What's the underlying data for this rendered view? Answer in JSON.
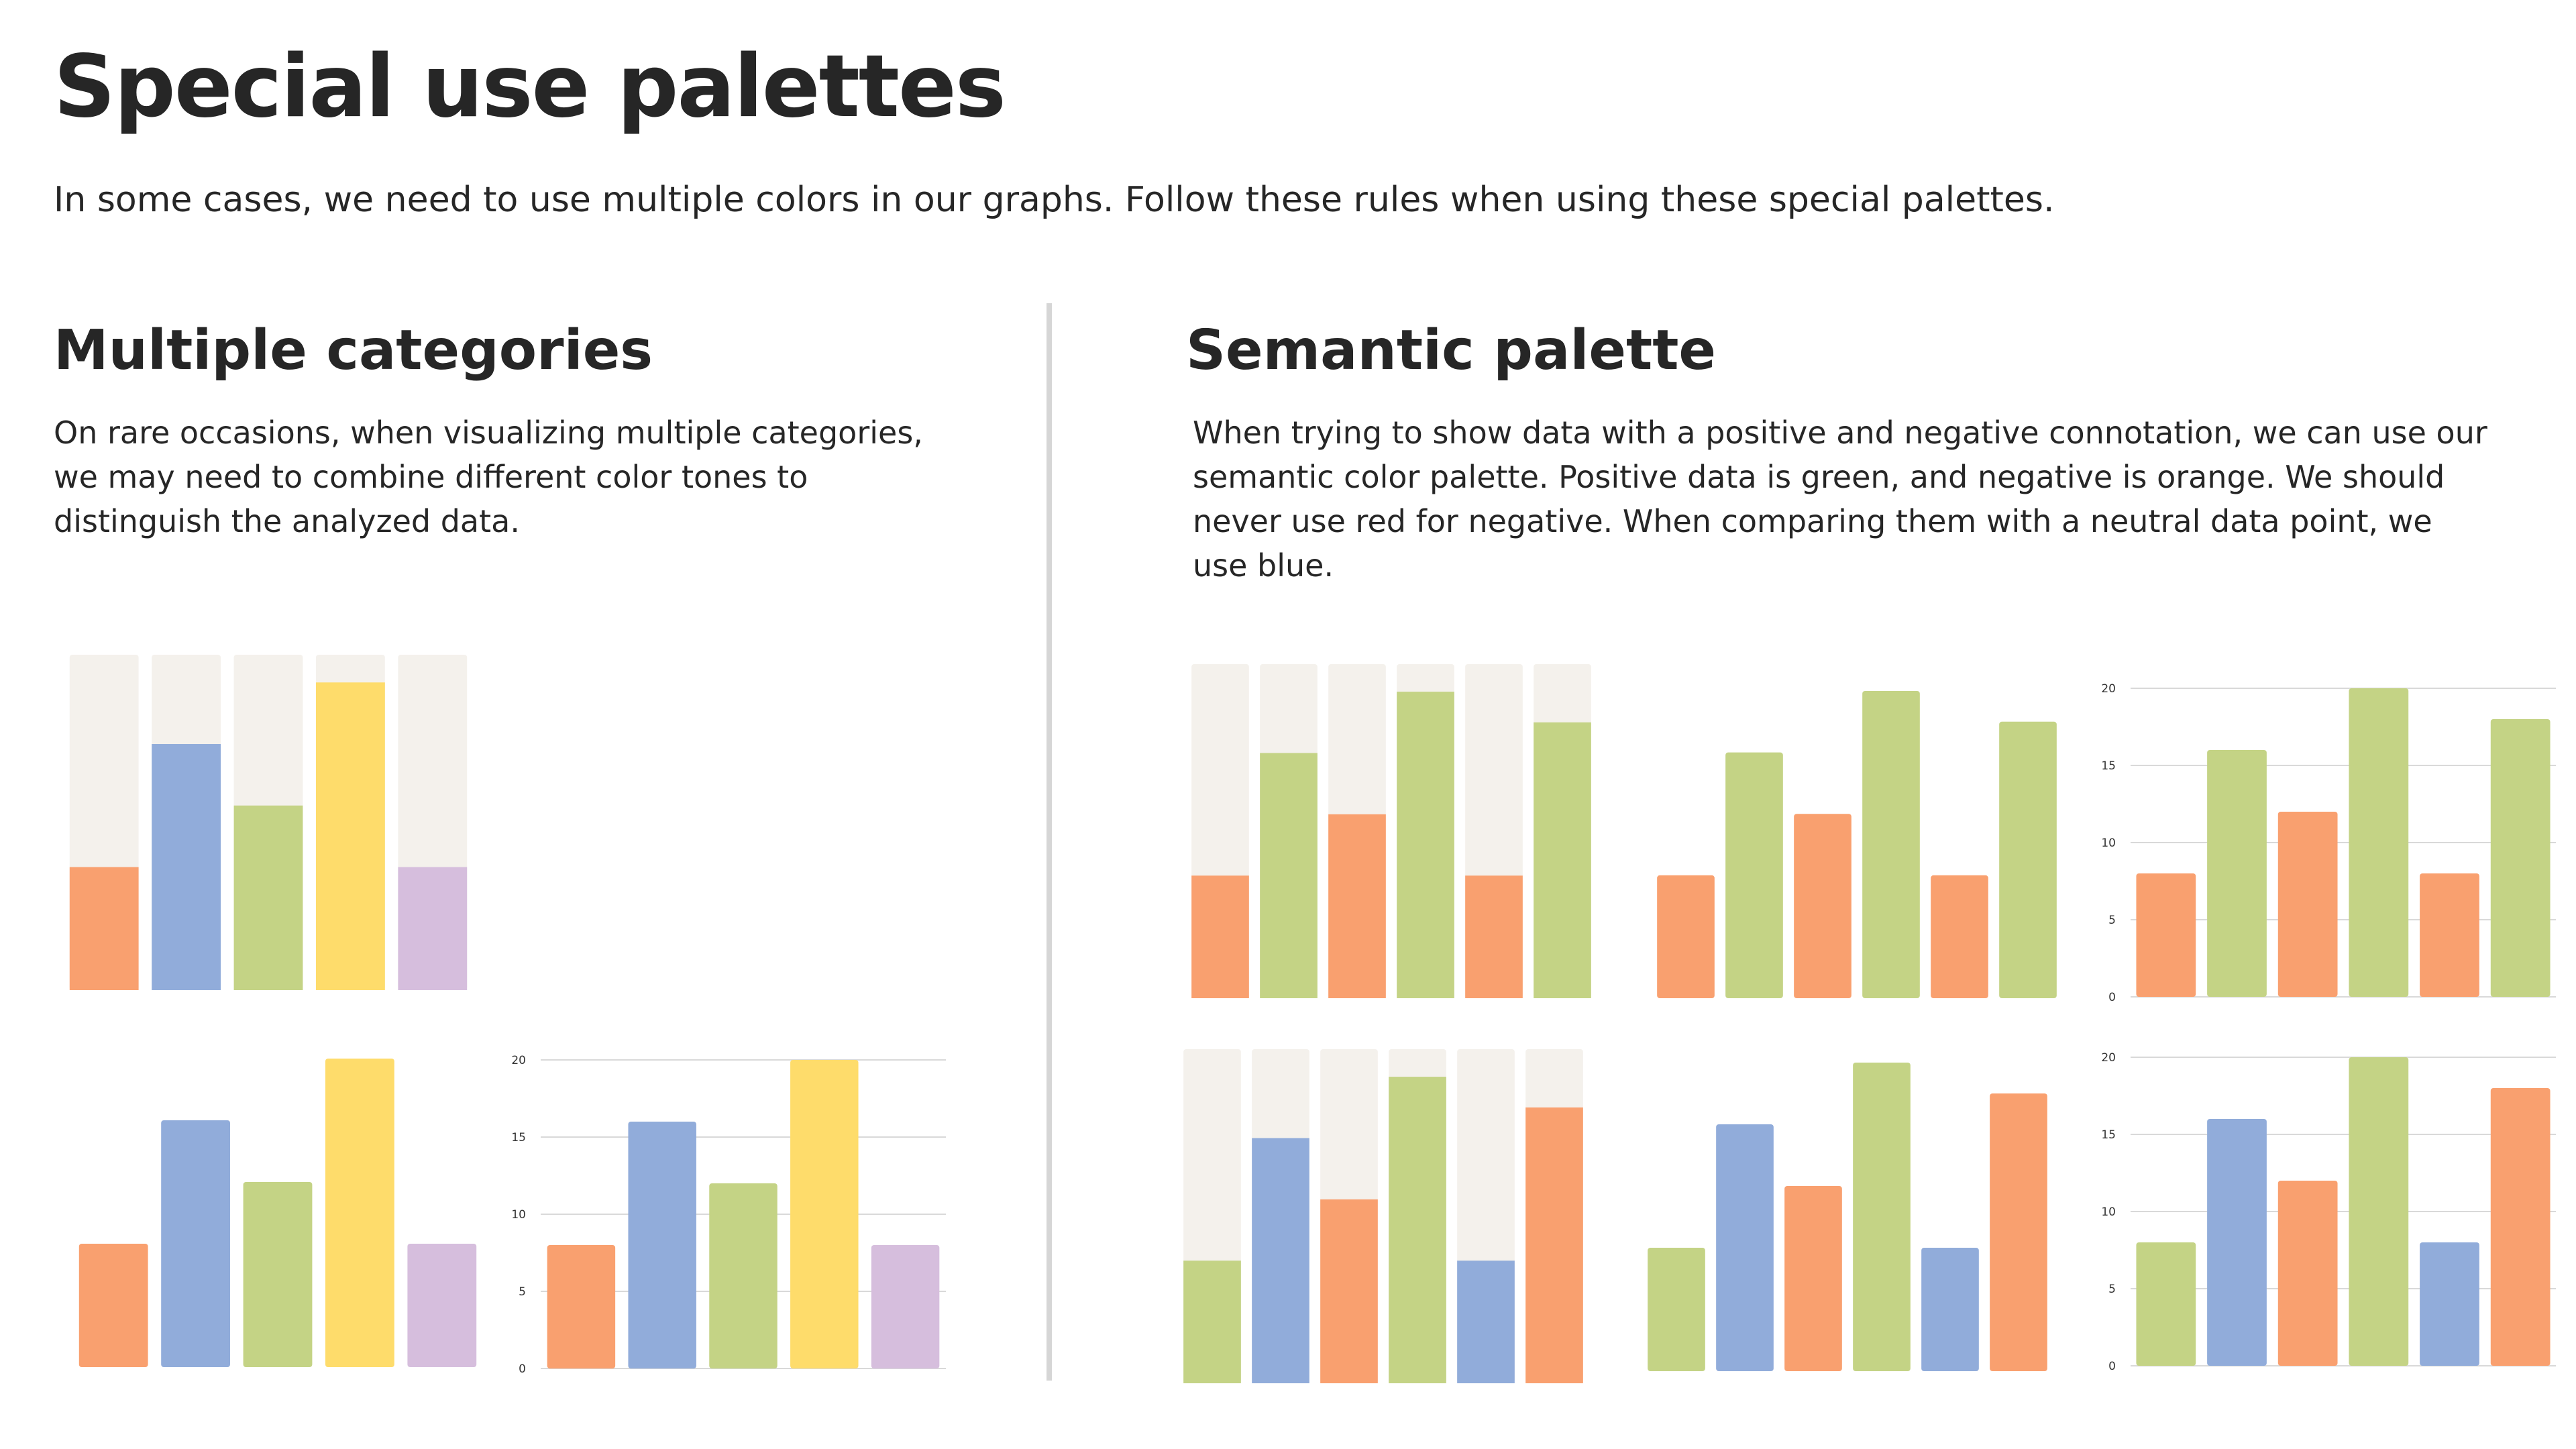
{
  "page": {
    "title": "Special use palettes",
    "subtitle": "In some cases, we need to use multiple colors in our graphs. Follow these rules when using these special palettes."
  },
  "left_section": {
    "title": "Multiple categories",
    "body": "On rare occasions, when visualizing multiple categories, we may need to combine different color tones to distinguish the analyzed data."
  },
  "right_section": {
    "title": "Semantic palette",
    "body": "When trying to show data with a positive and negative connotation, we can use our semantic color palette. Positive data is green, and negative is orange. We should never use red for negative. When comparing them with a neutral data point, we use blue."
  },
  "palette": {
    "orange": "#F9A06F",
    "blue": "#91ACDA",
    "green": "#C4D385",
    "yellow": "#FEDC6B",
    "purple": "#D6BEDD",
    "track": "#F4F1EC",
    "grid": "#D9D9D9",
    "axis_text": "#333333"
  },
  "chart_data": [
    {
      "type": "bar",
      "values": [
        8,
        16,
        12,
        20,
        8
      ],
      "colors": [
        "orange",
        "blue",
        "green",
        "yellow",
        "purple"
      ],
      "ylim": [
        0,
        21.8
      ],
      "background_track": true,
      "axis": false
    },
    {
      "type": "bar",
      "values": [
        8,
        16,
        12,
        20,
        8
      ],
      "colors": [
        "orange",
        "blue",
        "green",
        "yellow",
        "purple"
      ],
      "ylim": [
        0,
        20
      ],
      "background_track": false,
      "axis": false
    },
    {
      "type": "bar",
      "values": [
        8,
        16,
        12,
        20,
        8
      ],
      "colors": [
        "orange",
        "blue",
        "green",
        "yellow",
        "purple"
      ],
      "ylim": [
        0,
        20
      ],
      "yticks": [
        0,
        5,
        10,
        15,
        20
      ],
      "grid": true,
      "axis": true
    },
    {
      "type": "bar",
      "values": [
        8,
        16,
        12,
        20,
        8,
        18
      ],
      "colors": [
        "orange",
        "green",
        "orange",
        "green",
        "orange",
        "green"
      ],
      "ylim": [
        0,
        21.8
      ],
      "background_track": true,
      "axis": false
    },
    {
      "type": "bar",
      "values": [
        8,
        16,
        12,
        20,
        8,
        18
      ],
      "colors": [
        "orange",
        "green",
        "orange",
        "green",
        "orange",
        "green"
      ],
      "ylim": [
        0,
        20
      ],
      "background_track": false,
      "axis": false
    },
    {
      "type": "bar",
      "values": [
        8,
        16,
        12,
        20,
        8,
        18
      ],
      "colors": [
        "orange",
        "green",
        "orange",
        "green",
        "orange",
        "green"
      ],
      "ylim": [
        0,
        20
      ],
      "yticks": [
        0,
        5,
        10,
        15,
        20
      ],
      "grid": true,
      "axis": true
    },
    {
      "type": "bar",
      "values": [
        8,
        16,
        12,
        20,
        8,
        18
      ],
      "colors": [
        "green",
        "blue",
        "orange",
        "green",
        "blue",
        "orange"
      ],
      "ylim": [
        0,
        21.8
      ],
      "background_track": true,
      "axis": false
    },
    {
      "type": "bar",
      "values": [
        8,
        16,
        12,
        20,
        8,
        18
      ],
      "colors": [
        "green",
        "blue",
        "orange",
        "green",
        "blue",
        "orange"
      ],
      "ylim": [
        0,
        20
      ],
      "background_track": false,
      "axis": false
    },
    {
      "type": "bar",
      "values": [
        8,
        16,
        12,
        20,
        8,
        18
      ],
      "colors": [
        "green",
        "blue",
        "orange",
        "green",
        "blue",
        "orange"
      ],
      "ylim": [
        0,
        20
      ],
      "yticks": [
        0,
        5,
        10,
        15,
        20
      ],
      "grid": true,
      "axis": true
    }
  ]
}
